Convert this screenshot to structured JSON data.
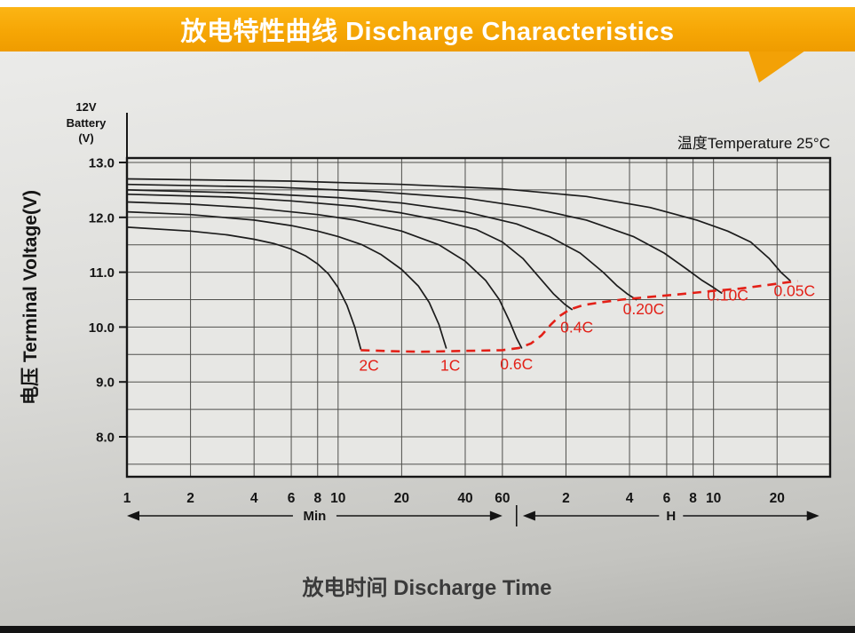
{
  "banner": {
    "title": "放电特性曲线 Discharge Characteristics"
  },
  "colors": {
    "banner_orange": "#f6a605",
    "curve_black": "#1c1c1c",
    "cutoff_red": "#e32017",
    "panel_gray": "#d7d7d4"
  },
  "battery_label": {
    "l1": "12V",
    "l2": "Battery",
    "l3": "(V)"
  },
  "temperature_label": "温度Temperature 25°C",
  "y_axis_title": "电压 Terminal Voltage(V)",
  "x_axis_title": "放电时间 Discharge Time",
  "chart_data": {
    "type": "line",
    "title": "放电特性曲线 Discharge Characteristics",
    "xlabel": "放电时间 Discharge Time",
    "ylabel": "电压 Terminal Voltage(V)",
    "annotation": "温度Temperature 25°C",
    "x_scale": "log",
    "x_domain_minutes": [
      1,
      2140
    ],
    "ylim": [
      8.0,
      13.0
    ],
    "y_major_ticks": [
      13.0,
      12.0,
      11.0,
      10.0,
      9.0,
      8.0
    ],
    "y_minor_step": 0.5,
    "grid": true,
    "x_ticks": [
      {
        "t": 1,
        "label": "1"
      },
      {
        "t": 2,
        "label": "2"
      },
      {
        "t": 4,
        "label": "4"
      },
      {
        "t": 6,
        "label": "6"
      },
      {
        "t": 8,
        "label": "8"
      },
      {
        "t": 10,
        "label": "10"
      },
      {
        "t": 20,
        "label": "20"
      },
      {
        "t": 40,
        "label": "40"
      },
      {
        "t": 60,
        "label": "60"
      },
      {
        "t": 120,
        "label": "2"
      },
      {
        "t": 240,
        "label": "4"
      },
      {
        "t": 360,
        "label": "6"
      },
      {
        "t": 480,
        "label": "8"
      },
      {
        "t": 600,
        "label": "10"
      },
      {
        "t": 1200,
        "label": "20"
      }
    ],
    "sections": [
      {
        "label": "Min",
        "from_t": 1,
        "to_t": 60
      },
      {
        "label": "H",
        "from_t": 75,
        "to_t": 1900
      }
    ],
    "divider_t": 70,
    "series": [
      {
        "name": "0.05C",
        "points": [
          [
            1,
            12.7
          ],
          [
            6,
            12.66
          ],
          [
            20,
            12.6
          ],
          [
            60,
            12.52
          ],
          [
            150,
            12.38
          ],
          [
            300,
            12.18
          ],
          [
            500,
            11.95
          ],
          [
            700,
            11.75
          ],
          [
            900,
            11.55
          ],
          [
            1100,
            11.25
          ],
          [
            1250,
            11.0
          ],
          [
            1380,
            10.85
          ]
        ]
      },
      {
        "name": "0.10C",
        "points": [
          [
            1,
            12.6
          ],
          [
            5,
            12.55
          ],
          [
            15,
            12.47
          ],
          [
            40,
            12.35
          ],
          [
            80,
            12.18
          ],
          [
            150,
            11.95
          ],
          [
            250,
            11.65
          ],
          [
            350,
            11.35
          ],
          [
            450,
            11.05
          ],
          [
            530,
            10.85
          ],
          [
            600,
            10.72
          ],
          [
            655,
            10.62
          ]
        ]
      },
      {
        "name": "0.20C",
        "points": [
          [
            1,
            12.5
          ],
          [
            4,
            12.44
          ],
          [
            10,
            12.36
          ],
          [
            20,
            12.26
          ],
          [
            40,
            12.1
          ],
          [
            70,
            11.88
          ],
          [
            100,
            11.65
          ],
          [
            140,
            11.35
          ],
          [
            180,
            11.0
          ],
          [
            210,
            10.75
          ],
          [
            235,
            10.6
          ],
          [
            258,
            10.5
          ]
        ]
      },
      {
        "name": "0.4C",
        "points": [
          [
            1,
            12.42
          ],
          [
            3,
            12.37
          ],
          [
            6,
            12.3
          ],
          [
            12,
            12.2
          ],
          [
            20,
            12.08
          ],
          [
            30,
            11.95
          ],
          [
            45,
            11.78
          ],
          [
            60,
            11.55
          ],
          [
            75,
            11.25
          ],
          [
            90,
            10.9
          ],
          [
            105,
            10.6
          ],
          [
            118,
            10.42
          ],
          [
            128,
            10.32
          ]
        ]
      },
      {
        "name": "0.6C",
        "points": [
          [
            1,
            12.28
          ],
          [
            2,
            12.24
          ],
          [
            4,
            12.17
          ],
          [
            8,
            12.05
          ],
          [
            12,
            11.95
          ],
          [
            20,
            11.75
          ],
          [
            30,
            11.5
          ],
          [
            40,
            11.2
          ],
          [
            50,
            10.85
          ],
          [
            58,
            10.5
          ],
          [
            65,
            10.1
          ],
          [
            70,
            9.8
          ],
          [
            74,
            9.62
          ]
        ]
      },
      {
        "name": "1C",
        "points": [
          [
            1,
            12.1
          ],
          [
            2,
            12.05
          ],
          [
            4,
            11.95
          ],
          [
            6,
            11.85
          ],
          [
            8,
            11.75
          ],
          [
            10,
            11.65
          ],
          [
            13,
            11.5
          ],
          [
            16,
            11.32
          ],
          [
            20,
            11.05
          ],
          [
            24,
            10.75
          ],
          [
            27,
            10.45
          ],
          [
            30,
            10.05
          ],
          [
            32.5,
            9.62
          ]
        ]
      },
      {
        "name": "2C",
        "points": [
          [
            1,
            11.82
          ],
          [
            2,
            11.75
          ],
          [
            3,
            11.68
          ],
          [
            4,
            11.6
          ],
          [
            5,
            11.52
          ],
          [
            6,
            11.42
          ],
          [
            7,
            11.3
          ],
          [
            8,
            11.15
          ],
          [
            9,
            10.97
          ],
          [
            10,
            10.72
          ],
          [
            11,
            10.4
          ],
          [
            12,
            10.0
          ],
          [
            12.8,
            9.6
          ]
        ]
      }
    ],
    "cutoff_curve": {
      "name": "discharge-cutoff",
      "style": "dashed",
      "color": "#e32017",
      "points": [
        [
          12.8,
          9.58
        ],
        [
          18,
          9.56
        ],
        [
          25,
          9.55
        ],
        [
          33,
          9.56
        ],
        [
          45,
          9.57
        ],
        [
          60,
          9.58
        ],
        [
          72,
          9.62
        ],
        [
          82,
          9.7
        ],
        [
          92,
          9.85
        ],
        [
          102,
          10.05
        ],
        [
          112,
          10.2
        ],
        [
          125,
          10.32
        ],
        [
          145,
          10.4
        ],
        [
          175,
          10.45
        ],
        [
          220,
          10.5
        ],
        [
          300,
          10.55
        ],
        [
          420,
          10.6
        ],
        [
          600,
          10.66
        ],
        [
          800,
          10.7
        ],
        [
          1000,
          10.75
        ],
        [
          1250,
          10.8
        ],
        [
          1500,
          10.84
        ]
      ]
    },
    "curve_labels": [
      {
        "text": "2C",
        "t": 14,
        "v": 9.3
      },
      {
        "text": "1C",
        "t": 34,
        "v": 9.3
      },
      {
        "text": "0.6C",
        "t": 70,
        "v": 9.33
      },
      {
        "text": "0.4C",
        "t": 135,
        "v": 10.0
      },
      {
        "text": "0.20C",
        "t": 280,
        "v": 10.33
      },
      {
        "text": "0.10C",
        "t": 700,
        "v": 10.58
      },
      {
        "text": "0.05C",
        "t": 1450,
        "v": 10.66
      }
    ],
    "legend_position": "none"
  }
}
